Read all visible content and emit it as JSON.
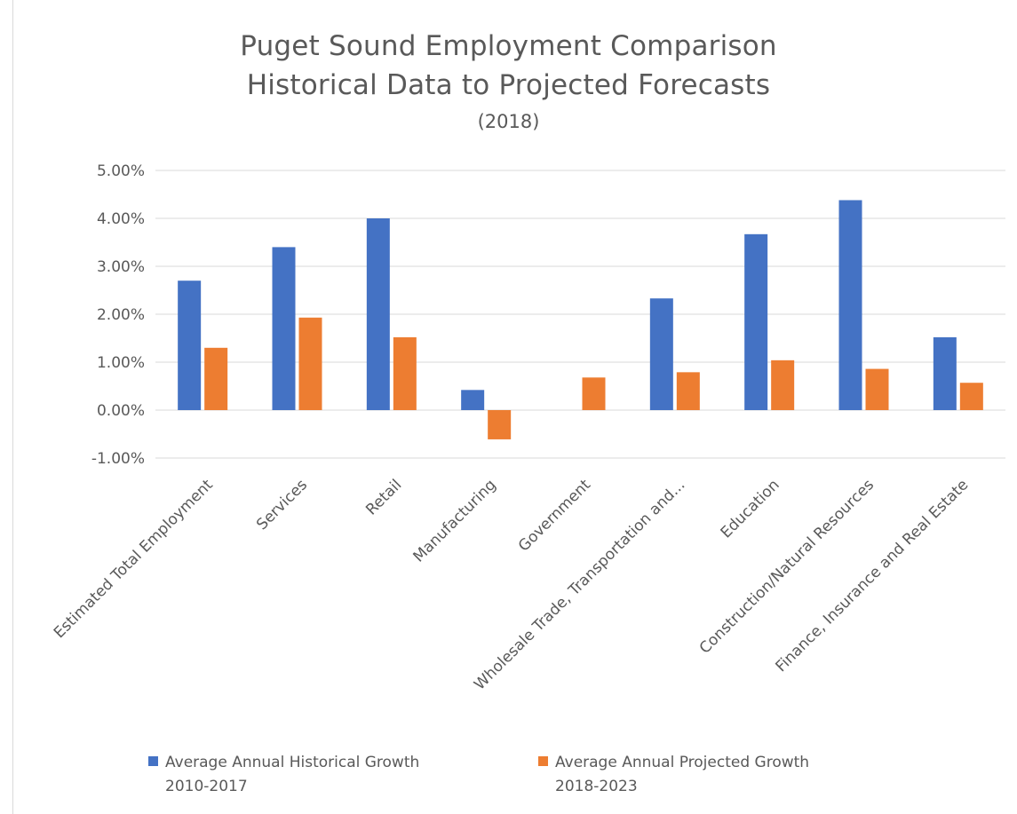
{
  "chart_data": {
    "type": "bar",
    "title": "Puget Sound Employment Comparison",
    "title_line2": "Historical Data to Projected Forecasts",
    "subtitle": "(2018)",
    "xlabel": "",
    "ylabel": "",
    "ylim": [
      -0.01,
      0.05
    ],
    "yticks": [
      0.05,
      0.04,
      0.03,
      0.02,
      0.01,
      0.0,
      -0.01
    ],
    "ytick_labels": [
      "5.00%",
      "4.00%",
      "3.00%",
      "2.00%",
      "1.00%",
      "0.00%",
      "-1.00%"
    ],
    "grid": true,
    "legend_position": "bottom",
    "categories": [
      "Estimated Total Employment",
      "Services",
      "Retail",
      "Manufacturing",
      "Government",
      "Wholesale Trade, Transportation and...",
      "Education",
      "Construction/Natural Resources",
      "Finance, Insurance and Real Estate"
    ],
    "series": [
      {
        "name": "Average Annual Historical Growth 2010-2017",
        "legend_text": "Average Annual Historical Growth\n2010-2017",
        "color": "#4472c4",
        "values": [
          0.027,
          0.034,
          0.04,
          0.0042,
          0.0,
          0.0233,
          0.0367,
          0.0438,
          0.0152
        ]
      },
      {
        "name": "Average Annual Projected Growth 2018-2023",
        "legend_text": "Average Annual Projected Growth\n2018-2023",
        "color": "#ed7d31",
        "values": [
          0.013,
          0.0193,
          0.0152,
          -0.0061,
          0.0068,
          0.0079,
          0.0104,
          0.0086,
          0.0057
        ]
      }
    ]
  },
  "colors": {
    "grid": "#d9d9d9",
    "text": "#595959",
    "background": "#ffffff"
  }
}
